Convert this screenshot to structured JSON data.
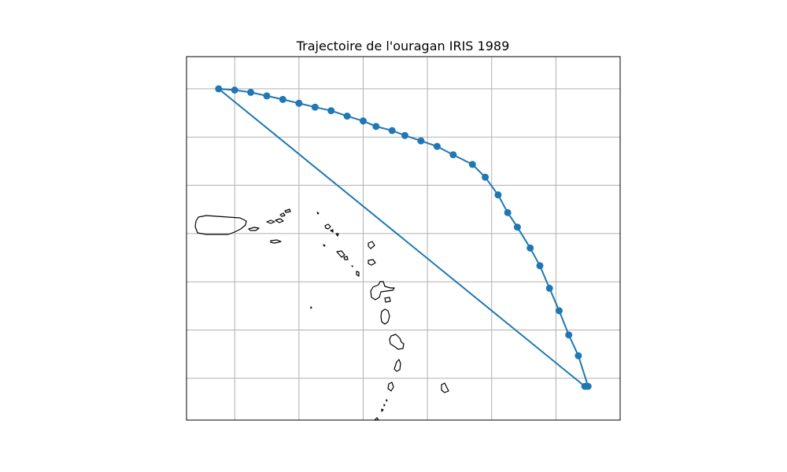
{
  "figure": {
    "title": "Trajectoire de l'ouragan IRIS 1989"
  },
  "colors": {
    "track": "#1f77b4",
    "grid": "#b0b0b0",
    "coastline": "#000000",
    "frame": "#000000"
  },
  "chart_data": {
    "type": "map-track",
    "title": "Trajectoire de l'ouragan IRIS 1989",
    "xlabel": "",
    "ylabel": "",
    "grid": true,
    "legend": "none",
    "xlim": [
      -68.1,
      -54.6
    ],
    "ylim": [
      10.8,
      22.1
    ],
    "gridlines_lon": [
      -66.6,
      -64.6,
      -62.6,
      -60.6,
      -58.6,
      -56.6
    ],
    "gridlines_lat": [
      12.1,
      13.6,
      15.1,
      16.6,
      18.1,
      19.6,
      21.1
    ],
    "series": [
      {
        "lon": [
          -67.1,
          -66.6,
          -66.1,
          -65.6,
          -65.1,
          -64.6,
          -64.1,
          -63.6,
          -63.1,
          -62.6,
          -62.2,
          -61.7,
          -61.3,
          -60.8,
          -60.3,
          -59.8,
          -59.2,
          -58.8,
          -58.4,
          -58.1,
          -57.8,
          -57.4,
          -57.1,
          -56.8,
          -56.5,
          -56.2,
          -55.9,
          -55.6,
          -55.7
        ],
        "lat": [
          21.1,
          21.06,
          20.99,
          20.88,
          20.77,
          20.65,
          20.53,
          20.42,
          20.25,
          20.1,
          19.93,
          19.8,
          19.65,
          19.48,
          19.31,
          19.05,
          18.75,
          18.35,
          17.8,
          17.25,
          16.8,
          16.15,
          15.6,
          14.9,
          14.2,
          13.45,
          12.8,
          11.85,
          11.85
        ]
      }
    ]
  }
}
